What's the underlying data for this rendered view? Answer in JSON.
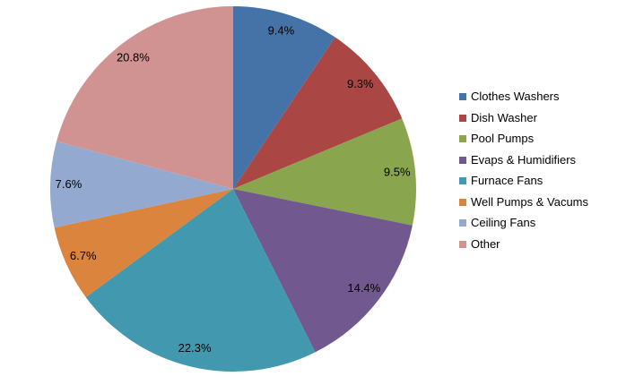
{
  "chart_data": {
    "type": "pie",
    "title": "",
    "categories": [
      "Clothes Washers",
      "Dish Washer",
      "Pool Pumps",
      "Evaps & Humidifiers",
      "Furnace Fans",
      "Well Pumps & Vacums",
      "Ceiling Fans",
      "Other"
    ],
    "values": [
      9.4,
      9.3,
      9.5,
      14.4,
      22.3,
      6.7,
      7.6,
      20.8
    ],
    "percent_labels": [
      "9.4%",
      "9.3%",
      "9.5%",
      "14.4%",
      "22.3%",
      "6.7%",
      "7.6%",
      "20.8%"
    ],
    "colors": [
      "#4572A7",
      "#AA4643",
      "#89A54E",
      "#71588F",
      "#4198AF",
      "#DB843D",
      "#93A9CF",
      "#D19392"
    ],
    "legend_position": "right",
    "start_angle_deg": 0,
    "direction": "clockwise",
    "label_color": "#000000",
    "background_color": "#FFFFFF",
    "grid": false
  }
}
